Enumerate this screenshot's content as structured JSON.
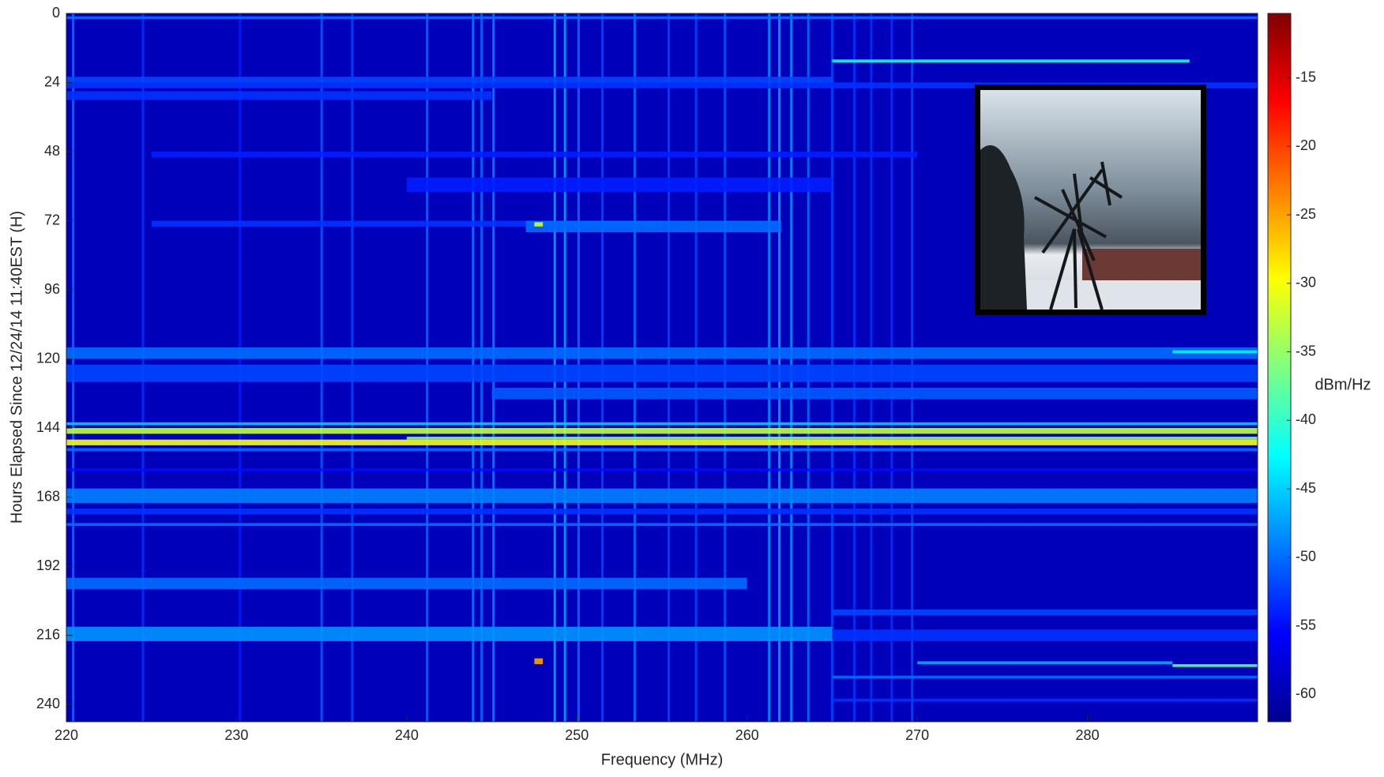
{
  "chart_data": {
    "type": "heatmap",
    "xlabel": "Frequency (MHz)",
    "ylabel": "Hours Elapsed Since 12/24/14 11:40EST (H)",
    "colorbar_label": "dBm/Hz",
    "colormap": "jet",
    "xlim": [
      220,
      290
    ],
    "xticks": [
      220,
      230,
      240,
      250,
      260,
      270,
      280
    ],
    "ylim": [
      0,
      246
    ],
    "y_reversed": true,
    "yticks": [
      0,
      24,
      48,
      72,
      96,
      120,
      144,
      168,
      192,
      216,
      240
    ],
    "clim": [
      -62,
      -10.3
    ],
    "cticks": [
      -60,
      -55,
      -50,
      -45,
      -40,
      -35,
      -30,
      -25,
      -20,
      -15
    ],
    "background": -59,
    "lines": {
      "freq": [
        220.4,
        224.5,
        230.2,
        235,
        236.8,
        241.2,
        243.9,
        244.4,
        245.1,
        248.7,
        249.3,
        250.1,
        251.5,
        253.4,
        255.4,
        257,
        258.7,
        261.3,
        261.9,
        262.6,
        263.6,
        265,
        266.3,
        267.3,
        268.5,
        269.7
      ],
      "values": [
        -50,
        -53,
        -54,
        -51,
        -52,
        -50,
        -49,
        -50,
        -49,
        -47,
        -47,
        -50,
        -52,
        -50,
        -52,
        -52,
        -51,
        -48,
        -47,
        -48,
        -50,
        -52,
        -53,
        -53,
        -53,
        -52
      ]
    },
    "cells": [
      [
        220,
        290,
        1,
        2,
        -50
      ],
      [
        220,
        265,
        22,
        24,
        -52
      ],
      [
        220,
        290,
        24,
        26,
        -53
      ],
      [
        220,
        245,
        27,
        30,
        -53
      ],
      [
        225,
        270,
        48,
        50,
        -54
      ],
      [
        240,
        265,
        57,
        62,
        -54
      ],
      [
        225,
        255,
        72,
        74,
        -53
      ],
      [
        247,
        262,
        72,
        76,
        -50
      ],
      [
        265,
        286,
        16,
        17,
        -42
      ],
      [
        220,
        290,
        116,
        120,
        -50
      ],
      [
        220,
        290,
        122,
        128,
        -52
      ],
      [
        245,
        290,
        130,
        134,
        -51
      ],
      [
        220,
        290,
        142,
        143,
        -45
      ],
      [
        220,
        290,
        144,
        146,
        -33
      ],
      [
        240,
        290,
        147,
        148,
        -36
      ],
      [
        220,
        290,
        148,
        150,
        -30
      ],
      [
        220,
        290,
        151,
        152,
        -50
      ],
      [
        220,
        290,
        158,
        159,
        -55
      ],
      [
        220,
        290,
        165,
        170,
        -49
      ],
      [
        220,
        290,
        172,
        174,
        -53
      ],
      [
        220,
        290,
        177,
        178,
        -50
      ],
      [
        220,
        260,
        196,
        200,
        -50
      ],
      [
        265,
        290,
        207,
        209,
        -52
      ],
      [
        220,
        265,
        213,
        218,
        -48
      ],
      [
        265,
        290,
        214,
        218,
        -53
      ],
      [
        270,
        285,
        225,
        226,
        -47
      ],
      [
        285,
        290,
        226,
        227,
        -38
      ],
      [
        265,
        290,
        230,
        231,
        -50
      ],
      [
        265,
        290,
        238,
        239,
        -53
      ],
      [
        285,
        290,
        117,
        118,
        -43
      ],
      [
        247.5,
        248,
        72.5,
        74,
        -32
      ],
      [
        247.5,
        248,
        224,
        226,
        -25
      ]
    ]
  }
}
